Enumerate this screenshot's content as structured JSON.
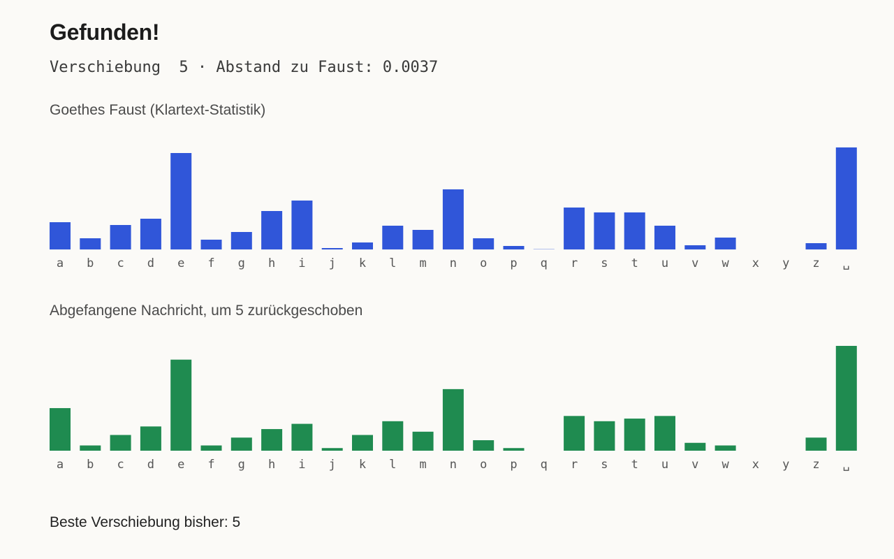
{
  "header": {
    "title": "Gefunden!",
    "status": "Verschiebung  5 · Abstand zu Faust: 0.0037"
  },
  "chart_data": [
    {
      "type": "bar",
      "title": "Goethes Faust (Klartext-Statistik)",
      "color": "#3056d9",
      "categories": [
        "a",
        "b",
        "c",
        "d",
        "e",
        "f",
        "g",
        "h",
        "i",
        "j",
        "k",
        "l",
        "m",
        "n",
        "o",
        "p",
        "q",
        "r",
        "s",
        "t",
        "u",
        "v",
        "w",
        "x",
        "y",
        "z",
        "␣"
      ],
      "values": [
        39,
        16,
        35,
        44,
        138,
        14,
        25,
        55,
        70,
        2,
        10,
        34,
        28,
        86,
        16,
        5,
        1,
        60,
        53,
        53,
        34,
        6,
        17,
        0,
        0,
        9,
        146
      ],
      "ylim": [
        0,
        150
      ],
      "grid": false
    },
    {
      "type": "bar",
      "title": "Abgefangene Nachricht, um 5 zurückgeschoben",
      "color": "#1f8b50",
      "categories": [
        "a",
        "b",
        "c",
        "d",
        "e",
        "f",
        "g",
        "h",
        "i",
        "j",
        "k",
        "l",
        "m",
        "n",
        "o",
        "p",
        "q",
        "r",
        "s",
        "t",
        "u",
        "v",
        "w",
        "x",
        "y",
        "z",
        "␣"
      ],
      "values": [
        65,
        8,
        24,
        37,
        139,
        8,
        20,
        33,
        41,
        4,
        24,
        45,
        29,
        94,
        16,
        4,
        0,
        53,
        45,
        49,
        53,
        12,
        8,
        0,
        0,
        20,
        160
      ],
      "ylim": [
        0,
        160
      ],
      "grid": false
    }
  ],
  "footer": {
    "best_shift": "Beste Verschiebung bisher: 5"
  }
}
